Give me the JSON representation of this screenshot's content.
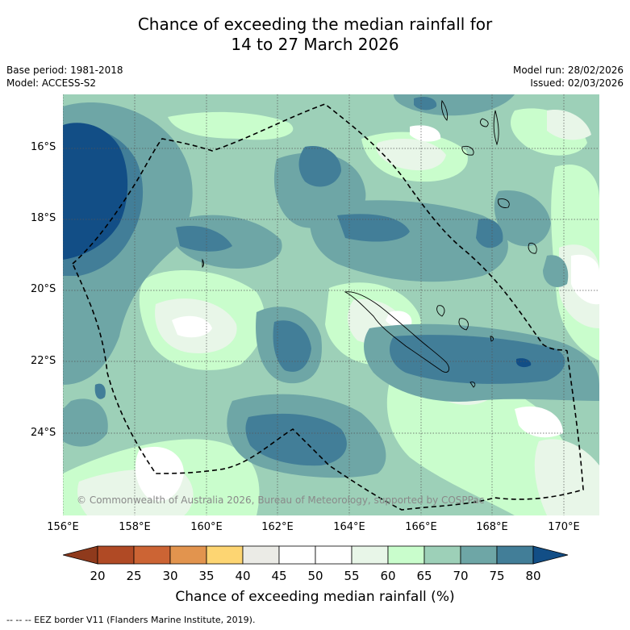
{
  "title": {
    "line1": "Chance of exceeding the median rainfall for",
    "line2": "14 to 27 March 2026"
  },
  "meta": {
    "base_period": "Base period: 1981-2018",
    "model": "Model: ACCESS-S2",
    "model_run": "Model run: 28/02/2026",
    "issued": "Issued: 02/03/2026"
  },
  "map": {
    "lat_labels": [
      "16°S",
      "18°S",
      "20°S",
      "22°S",
      "24°S"
    ],
    "lon_labels": [
      "156°E",
      "158°E",
      "160°E",
      "162°E",
      "164°E",
      "166°E",
      "168°E",
      "170°E"
    ],
    "copyright": "© Commonwealth of Australia 2026, Bureau of Meteorology, supported by COSPPac"
  },
  "colorbar": {
    "ticks": [
      "20",
      "25",
      "30",
      "35",
      "40",
      "45",
      "50",
      "55",
      "60",
      "65",
      "70",
      "75",
      "80"
    ],
    "label": "Chance of exceeding median rainfall (%)",
    "colors": [
      "#b04a25",
      "#cc6434",
      "#e2944e",
      "#fdd572",
      "#ebebe6",
      "#ffffff",
      "#ffffff",
      "#e8f6e8",
      "#c9fdcc",
      "#9dd0b8",
      "#6ea6a6",
      "#427e98"
    ],
    "low_arrow_color": "#8f3a1c",
    "high_arrow_color": "#124e86"
  },
  "legend": {
    "eez_text": "-- -- -- EEZ border V11 (Flanders Marine Institute, 2019)."
  }
}
